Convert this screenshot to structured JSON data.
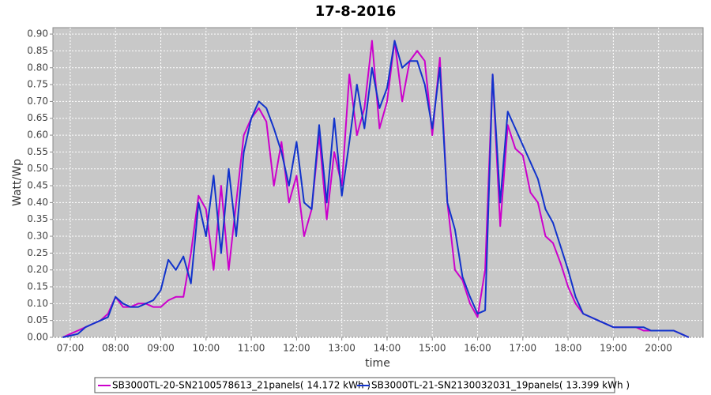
{
  "chart_data": {
    "type": "line",
    "title": "17-8-2016",
    "x_label": "time",
    "y_label": "Watt/Wp",
    "x": [
      "06:50",
      "07:00",
      "07:10",
      "07:20",
      "07:30",
      "07:40",
      "07:50",
      "08:00",
      "08:10",
      "08:20",
      "08:30",
      "08:40",
      "08:50",
      "09:00",
      "09:10",
      "09:20",
      "09:30",
      "09:40",
      "09:50",
      "10:00",
      "10:10",
      "10:20",
      "10:30",
      "10:40",
      "10:50",
      "11:00",
      "11:10",
      "11:20",
      "11:30",
      "11:40",
      "11:50",
      "12:00",
      "12:10",
      "12:20",
      "12:30",
      "12:40",
      "12:50",
      "13:00",
      "13:10",
      "13:20",
      "13:30",
      "13:40",
      "13:50",
      "14:00",
      "14:10",
      "14:20",
      "14:30",
      "14:40",
      "14:50",
      "15:00",
      "15:10",
      "15:20",
      "15:30",
      "15:40",
      "15:50",
      "16:00",
      "16:10",
      "16:20",
      "16:30",
      "16:40",
      "16:50",
      "17:00",
      "17:10",
      "17:20",
      "17:30",
      "17:40",
      "17:50",
      "18:00",
      "18:10",
      "18:20",
      "18:30",
      "18:40",
      "18:50",
      "19:00",
      "19:10",
      "19:20",
      "19:30",
      "19:40",
      "19:50",
      "20:00",
      "20:10",
      "20:20",
      "20:30",
      "20:40"
    ],
    "series": [
      {
        "name": "SB3000TL-20-SN2100578613_21panels( 14.172 kWh )",
        "color": "#cc00cc",
        "values": [
          0.0,
          0.01,
          0.02,
          0.03,
          0.04,
          0.05,
          0.07,
          0.12,
          0.09,
          0.09,
          0.1,
          0.1,
          0.09,
          0.09,
          0.11,
          0.12,
          0.12,
          0.25,
          0.42,
          0.38,
          0.2,
          0.45,
          0.2,
          0.4,
          0.6,
          0.65,
          0.68,
          0.64,
          0.45,
          0.58,
          0.4,
          0.48,
          0.3,
          0.38,
          0.6,
          0.35,
          0.55,
          0.45,
          0.78,
          0.6,
          0.68,
          0.88,
          0.62,
          0.7,
          0.88,
          0.7,
          0.82,
          0.85,
          0.82,
          0.6,
          0.83,
          0.4,
          0.2,
          0.17,
          0.1,
          0.06,
          0.2,
          0.78,
          0.33,
          0.63,
          0.56,
          0.54,
          0.43,
          0.4,
          0.3,
          0.28,
          0.22,
          0.15,
          0.1,
          0.07,
          0.06,
          0.05,
          0.04,
          0.03,
          0.03,
          0.03,
          0.03,
          0.02,
          0.02,
          0.02,
          0.02,
          0.02,
          0.01,
          0.0
        ]
      },
      {
        "name": "SB3000TL-21-SN2130032031_19panels( 13.399 kWh )",
        "color": "#1133cc",
        "values": [
          0.0,
          0.005,
          0.01,
          0.03,
          0.04,
          0.05,
          0.06,
          0.12,
          0.1,
          0.09,
          0.09,
          0.1,
          0.11,
          0.14,
          0.23,
          0.2,
          0.24,
          0.16,
          0.4,
          0.3,
          0.48,
          0.25,
          0.5,
          0.3,
          0.55,
          0.65,
          0.7,
          0.68,
          0.62,
          0.55,
          0.45,
          0.58,
          0.4,
          0.38,
          0.63,
          0.4,
          0.65,
          0.42,
          0.58,
          0.75,
          0.62,
          0.8,
          0.68,
          0.74,
          0.88,
          0.8,
          0.82,
          0.82,
          0.75,
          0.62,
          0.8,
          0.4,
          0.32,
          0.18,
          0.12,
          0.07,
          0.08,
          0.78,
          0.4,
          0.67,
          0.62,
          0.57,
          0.52,
          0.47,
          0.38,
          0.34,
          0.27,
          0.2,
          0.12,
          0.07,
          0.06,
          0.05,
          0.04,
          0.03,
          0.03,
          0.03,
          0.03,
          0.03,
          0.02,
          0.02,
          0.02,
          0.02,
          0.01,
          0.0
        ]
      }
    ],
    "xlim": [
      "06:37",
      "20:59"
    ],
    "xticks": [
      "07:00",
      "08:00",
      "09:00",
      "10:00",
      "11:00",
      "12:00",
      "13:00",
      "14:00",
      "15:00",
      "16:00",
      "17:00",
      "18:00",
      "19:00",
      "20:00"
    ],
    "ylim": [
      0,
      0.919
    ],
    "yticks": [
      {
        "value": 0,
        "label": "0.00"
      },
      {
        "value": 0.05,
        "label": "0.05"
      },
      {
        "value": 0.1,
        "label": "0.10"
      },
      {
        "value": 0.15,
        "label": "0.15"
      },
      {
        "value": 0.2,
        "label": "0.20"
      },
      {
        "value": 0.25,
        "label": "0.25"
      },
      {
        "value": 0.3,
        "label": "0.30"
      },
      {
        "value": 0.35,
        "label": "0.35"
      },
      {
        "value": 0.4,
        "label": "0.40"
      },
      {
        "value": 0.45,
        "label": "0.45"
      },
      {
        "value": 0.5,
        "label": "0.50"
      },
      {
        "value": 0.55,
        "label": "0.55"
      },
      {
        "value": 0.6,
        "label": "0.60"
      },
      {
        "value": 0.65,
        "label": "0.65"
      },
      {
        "value": 0.7,
        "label": "0.70"
      },
      {
        "value": 0.75,
        "label": "0.75"
      },
      {
        "value": 0.8,
        "label": "0.80"
      },
      {
        "value": 0.85,
        "label": "0.85"
      },
      {
        "value": 0.9,
        "label": "0.90"
      }
    ],
    "grid": true,
    "legend": "bottom"
  }
}
